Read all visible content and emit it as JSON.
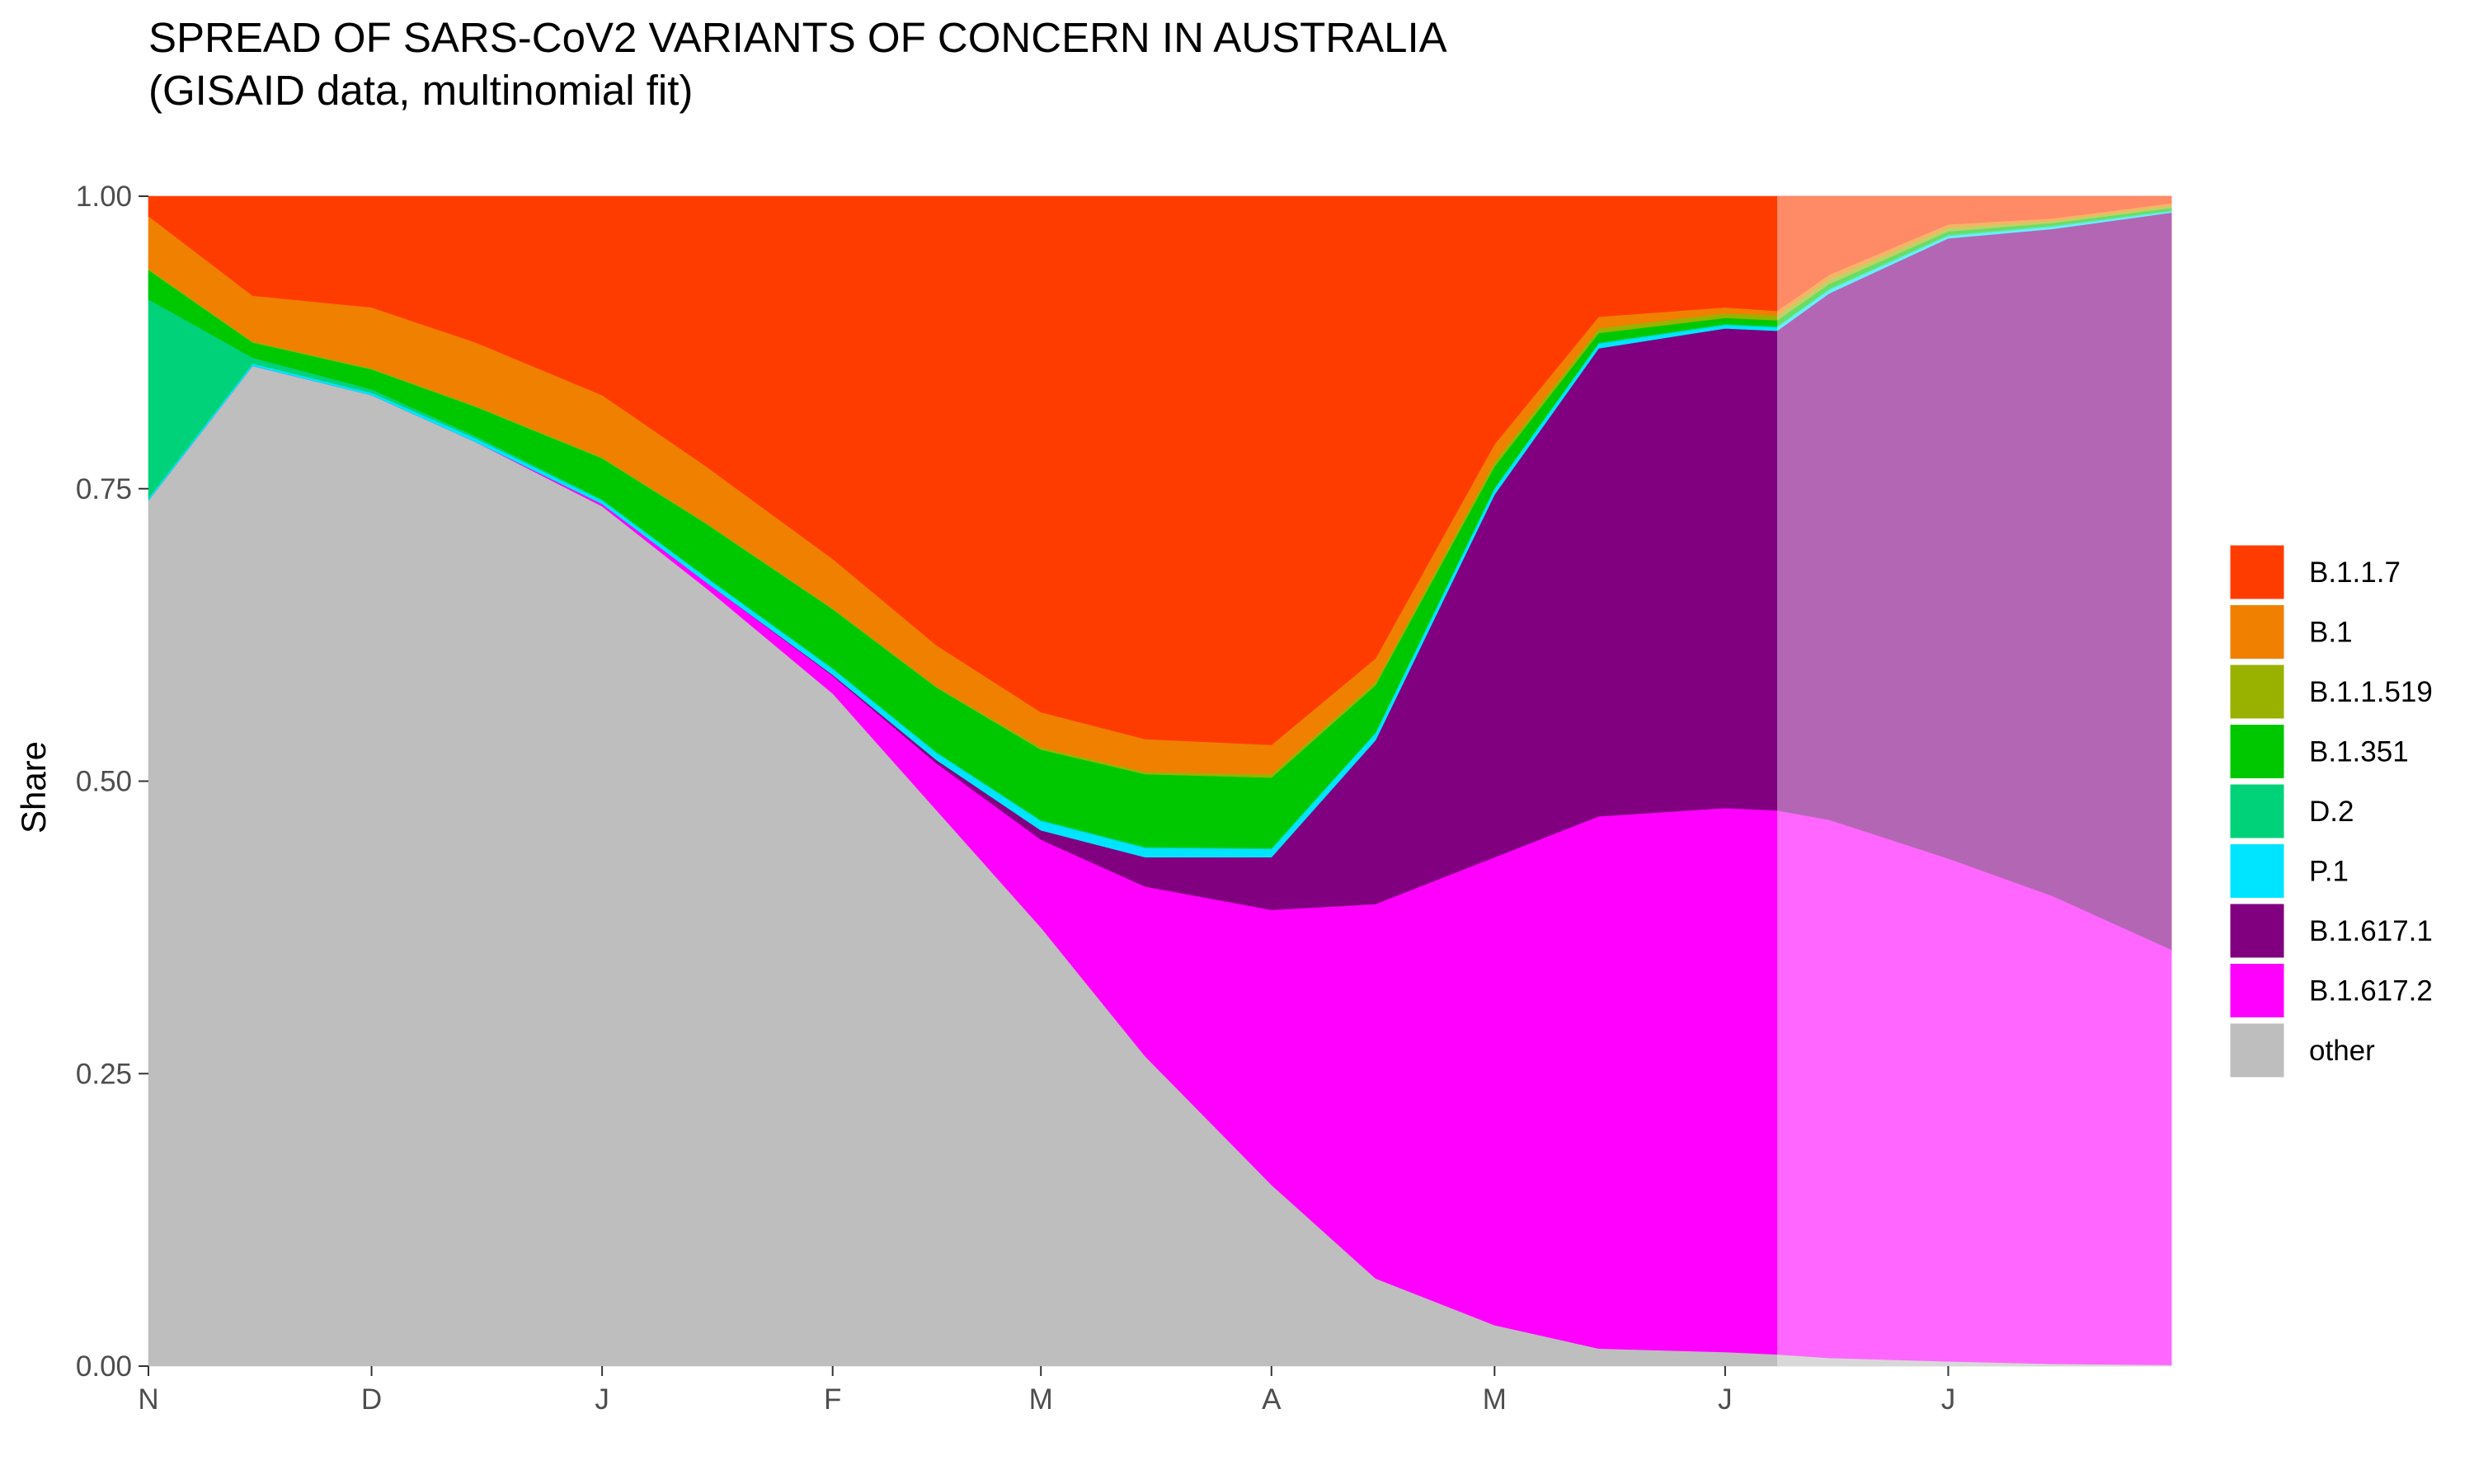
{
  "chart_data": {
    "type": "area",
    "stacked": true,
    "title": "SPREAD OF SARS-CoV2 VARIANTS OF CONCERN IN AUSTRALIA",
    "subtitle": "(GISAID data, multinomial fit)",
    "xlabel": "",
    "ylabel": "Share",
    "ylim": [
      0,
      1
    ],
    "y_ticks": [
      "0.00",
      "0.25",
      "0.50",
      "0.75",
      "1.00"
    ],
    "x_ticks": [
      "N",
      "D",
      "J",
      "F",
      "M",
      "A",
      "M",
      "J",
      "J"
    ],
    "x": [
      "2020-11-01",
      "2020-11-15",
      "2020-12-01",
      "2020-12-15",
      "2021-01-01",
      "2021-01-15",
      "2021-02-01",
      "2021-02-15",
      "2021-03-01",
      "2021-03-15",
      "2021-04-01",
      "2021-04-15",
      "2021-05-01",
      "2021-05-15",
      "2021-06-01",
      "2021-06-08",
      "2021-06-15",
      "2021-07-01",
      "2021-07-15",
      "2021-07-31"
    ],
    "forecast_start": "2021-06-08",
    "grid": false,
    "legend_position": "right",
    "series": [
      {
        "name": "other",
        "color": "#BEBEBE",
        "values": [
          0.74,
          0.855,
          0.83,
          0.79,
          0.735,
          0.665,
          0.575,
          0.475,
          0.375,
          0.265,
          0.155,
          0.075,
          0.035,
          0.015,
          0.012,
          0.01,
          0.007,
          0.004,
          0.002,
          0.001
        ]
      },
      {
        "name": "B.1.617.2",
        "color": "#FF00FF",
        "values": [
          0,
          0,
          0,
          0,
          0.002,
          0.005,
          0.015,
          0.04,
          0.075,
          0.145,
          0.235,
          0.32,
          0.4,
          0.455,
          0.465,
          0.465,
          0.46,
          0.43,
          0.4,
          0.355
        ]
      },
      {
        "name": "B.1.617.1",
        "color": "#800080",
        "values": [
          0,
          0,
          0,
          0,
          0,
          0,
          0.001,
          0.003,
          0.008,
          0.025,
          0.045,
          0.14,
          0.31,
          0.4,
          0.41,
          0.41,
          0.45,
          0.53,
          0.57,
          0.63
        ]
      },
      {
        "name": "P.1",
        "color": "#00E5FF",
        "values": [
          0.002,
          0.002,
          0.002,
          0.003,
          0.003,
          0.004,
          0.005,
          0.006,
          0.008,
          0.008,
          0.007,
          0.006,
          0.005,
          0.004,
          0.003,
          0.003,
          0.003,
          0.002,
          0.002,
          0.001
        ]
      },
      {
        "name": "D.2",
        "color": "#00D27A",
        "values": [
          0.17,
          0.005,
          0.003,
          0.002,
          0.001,
          0.001,
          0.001,
          0.001,
          0.001,
          0.001,
          0.001,
          0.001,
          0.001,
          0.001,
          0.001,
          0.001,
          0.001,
          0.001,
          0.001,
          0.001
        ]
      },
      {
        "name": "B.1.351",
        "color": "#00C800",
        "values": [
          0.025,
          0.013,
          0.017,
          0.025,
          0.035,
          0.045,
          0.05,
          0.055,
          0.06,
          0.062,
          0.06,
          0.04,
          0.018,
          0.008,
          0.005,
          0.005,
          0.004,
          0.003,
          0.002,
          0.002
        ]
      },
      {
        "name": "B.1.1.519",
        "color": "#99B200",
        "values": [
          0.001,
          0.001,
          0.001,
          0.001,
          0.001,
          0.001,
          0.001,
          0.001,
          0.002,
          0.002,
          0.003,
          0.003,
          0.004,
          0.004,
          0.004,
          0.004,
          0.004,
          0.003,
          0.002,
          0.002
        ]
      },
      {
        "name": "B.1",
        "color": "#F08000",
        "values": [
          0.045,
          0.039,
          0.052,
          0.054,
          0.053,
          0.048,
          0.042,
          0.035,
          0.03,
          0.028,
          0.025,
          0.02,
          0.015,
          0.01,
          0.005,
          0.004,
          0.004,
          0.003,
          0.002,
          0.002
        ]
      },
      {
        "name": "B.1.1.7",
        "color": "#FF3C00",
        "values": [
          0.017,
          0.085,
          0.095,
          0.125,
          0.17,
          0.231,
          0.31,
          0.384,
          0.441,
          0.464,
          0.469,
          0.395,
          0.212,
          0.103,
          0.095,
          0.098,
          0.067,
          0.024,
          0.019,
          0.006
        ]
      }
    ],
    "legend": [
      "B.1.1.7",
      "B.1",
      "B.1.1.519",
      "B.1.351",
      "D.2",
      "P.1",
      "B.1.617.1",
      "B.1.617.2",
      "other"
    ]
  }
}
